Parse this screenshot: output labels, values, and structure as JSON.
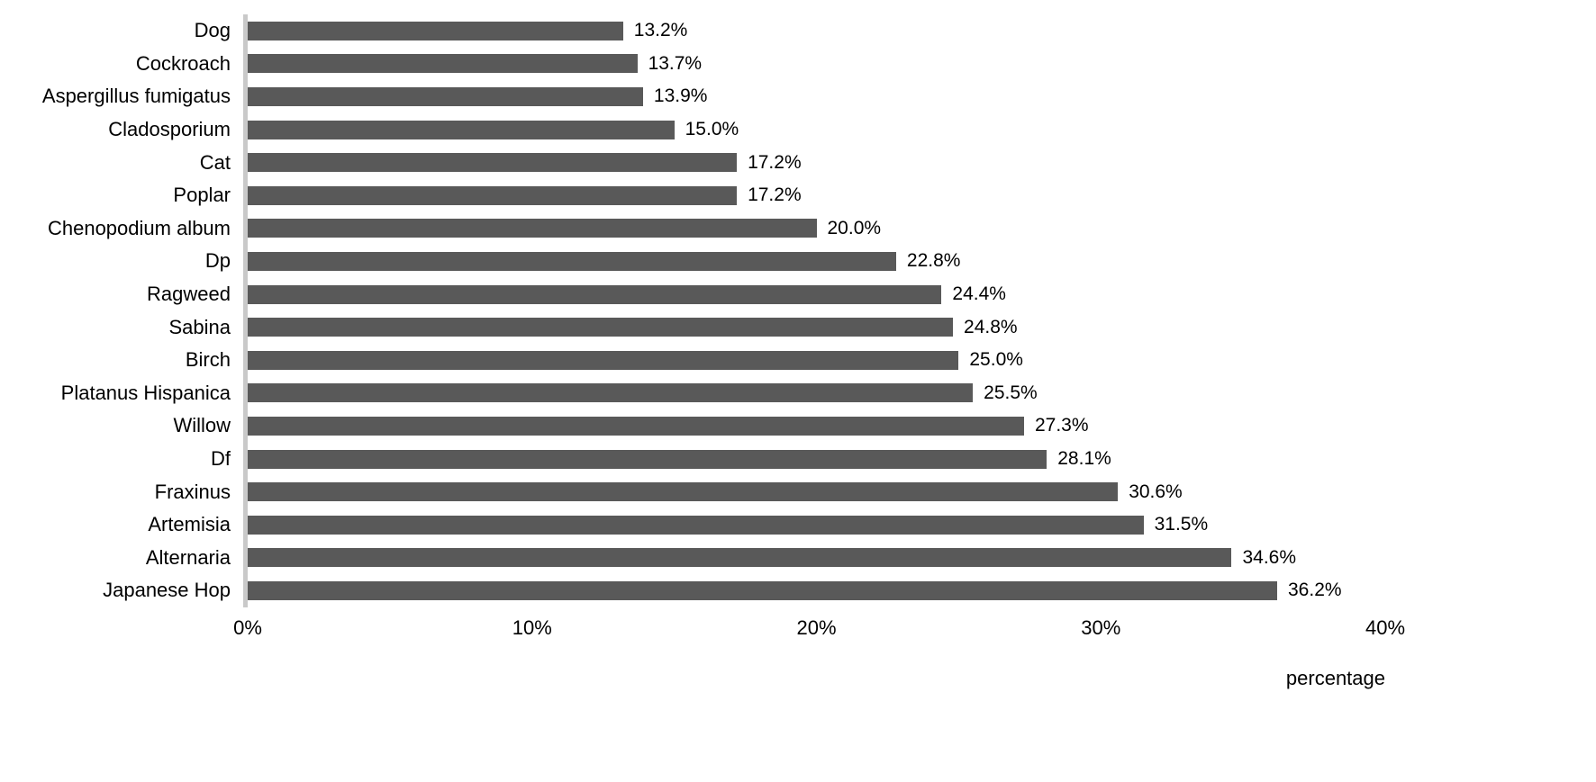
{
  "chart_data": {
    "type": "bar",
    "orientation": "horizontal",
    "title": "",
    "xlabel": "percentage",
    "ylabel": "",
    "xlim": [
      0,
      40
    ],
    "x_ticks": [
      "0%",
      "10%",
      "20%",
      "30%",
      "40%"
    ],
    "grid": "off",
    "legend": "none",
    "bar_color": "#595959",
    "axis_line_color": "#c9c9c9",
    "background": "#ffffff",
    "categories": [
      "Dog",
      "Cockroach",
      "Aspergillus fumigatus",
      "Cladosporium",
      "Cat",
      "Poplar",
      "Chenopodium album",
      "Dp",
      "Ragweed",
      "Sabina",
      "Birch",
      "Platanus Hispanica",
      "Willow",
      "Df",
      "Fraxinus",
      "Artemisia",
      "Alternaria",
      "Japanese Hop"
    ],
    "values": [
      13.2,
      13.7,
      13.9,
      15.0,
      17.2,
      17.2,
      20.0,
      22.8,
      24.4,
      24.8,
      25.0,
      25.5,
      27.3,
      28.1,
      30.6,
      31.5,
      34.6,
      36.2
    ],
    "value_labels": [
      "13.2%",
      "13.7%",
      "13.9%",
      "15.0%",
      "17.2%",
      "17.2%",
      "20.0%",
      "22.8%",
      "24.4%",
      "24.8%",
      "25.0%",
      "25.5%",
      "27.3%",
      "28.1%",
      "30.6%",
      "31.5%",
      "34.6%",
      "36.2%"
    ]
  }
}
